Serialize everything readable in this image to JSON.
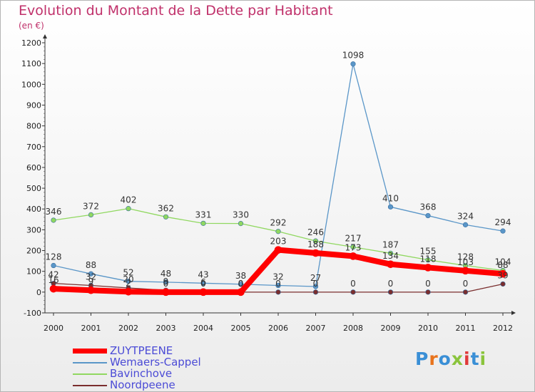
{
  "title": "Evolution du Montant de la Dette par Habitant",
  "unit": "(en €)",
  "logo": {
    "text": "Proxiti",
    "colors": [
      "#3a8fd6",
      "#e8731c",
      "#3a8fd6",
      "#8ac43c",
      "#e03a3a",
      "#3a8fd6",
      "#8ac43c"
    ]
  },
  "chart_data": {
    "type": "line",
    "x": [
      "2000",
      "2001",
      "2002",
      "2003",
      "2004",
      "2005",
      "2006",
      "2007",
      "2008",
      "2009",
      "2010",
      "2011",
      "2012"
    ],
    "ylim": [
      -100,
      1200
    ],
    "yticks": [
      -100,
      0,
      100,
      200,
      300,
      400,
      500,
      600,
      700,
      800,
      900,
      1000,
      1100,
      1200
    ],
    "grid": false,
    "legend_position": "bottom-left",
    "series": [
      {
        "name": "ZUYTPEENE",
        "color": "#ff0000",
        "width": 8,
        "values": [
          16,
          9,
          2,
          0,
          0,
          0,
          203,
          188,
          173,
          134,
          118,
          103,
          88
        ],
        "labels": [
          "16",
          "9",
          "2",
          "0",
          "0",
          "0",
          "203",
          "188",
          "173",
          "134",
          "118",
          "103",
          "88"
        ]
      },
      {
        "name": "Wemaers-Cappel",
        "color": "#5a96c8",
        "width": 1.3,
        "values": [
          128,
          88,
          52,
          48,
          43,
          38,
          32,
          27,
          1098,
          410,
          368,
          324,
          294
        ],
        "labels": [
          "128",
          "88",
          "52",
          "48",
          "43",
          "38",
          "32",
          "27",
          "1098",
          "410",
          "368",
          "324",
          "294"
        ]
      },
      {
        "name": "Bavinchove",
        "color": "#90d860",
        "width": 1.3,
        "values": [
          346,
          372,
          402,
          362,
          331,
          330,
          292,
          246,
          217,
          187,
          155,
          128,
          104
        ],
        "labels": [
          "346",
          "372",
          "402",
          "362",
          "331",
          "330",
          "292",
          "246",
          "217",
          "187",
          "155",
          "128",
          "104"
        ]
      },
      {
        "name": "Noordpeene",
        "color": "#7a2e2e",
        "width": 1.3,
        "values": [
          42,
          32,
          20,
          9,
          6,
          0,
          0,
          0,
          0,
          0,
          0,
          0,
          39
        ],
        "labels": [
          "42",
          "32",
          "20",
          "9",
          "6",
          "0",
          "0",
          "0",
          "0",
          "0",
          "0",
          "0",
          "39"
        ]
      }
    ]
  }
}
